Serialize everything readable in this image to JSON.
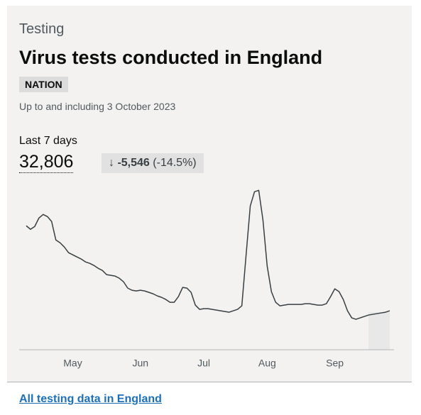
{
  "caption": "Testing",
  "title": "Virus tests conducted in England",
  "tag": "NATION",
  "subtitle": "Up to and including 3 October 2023",
  "headline": {
    "label": "Last 7 days",
    "value": "32,806",
    "change": "-5,546",
    "change_percent": "(-14.5%)"
  },
  "link": "All testing data in England",
  "chart_data": {
    "type": "line",
    "color": "#383f43",
    "ylim": [
      0,
      21000
    ],
    "categories": [
      null,
      null,
      null,
      null,
      null,
      null,
      null,
      null,
      null,
      null,
      null,
      "May",
      null,
      null,
      null,
      null,
      null,
      null,
      null,
      null,
      null,
      null,
      null,
      null,
      null,
      null,
      null,
      "Jun",
      null,
      null,
      null,
      null,
      null,
      null,
      null,
      null,
      null,
      null,
      null,
      null,
      null,
      null,
      "Jul",
      null,
      null,
      null,
      null,
      null,
      null,
      null,
      null,
      null,
      null,
      null,
      null,
      null,
      null,
      "Aug",
      null,
      null,
      null,
      null,
      null,
      null,
      null,
      null,
      null,
      null,
      null,
      null,
      null,
      null,
      null,
      "Sep",
      null,
      null,
      null,
      null,
      null,
      null,
      null,
      null,
      null,
      null,
      null,
      null,
      null
    ],
    "values": [
      15750,
      15300,
      15660,
      16740,
      17190,
      16920,
      16290,
      13950,
      13590,
      13050,
      12330,
      12060,
      11790,
      11520,
      11160,
      10980,
      10710,
      10350,
      10080,
      9540,
      9450,
      9360,
      9090,
      8640,
      7830,
      7560,
      7470,
      7560,
      7470,
      7290,
      7110,
      6840,
      6660,
      6390,
      6030,
      6030,
      6750,
      7920,
      7830,
      7290,
      5670,
      5130,
      5220,
      5220,
      5130,
      5040,
      4950,
      4860,
      4770,
      4950,
      5130,
      5580,
      11970,
      18270,
      20070,
      20250,
      16470,
      10620,
      7380,
      6030,
      5580,
      5670,
      5760,
      5760,
      5760,
      5760,
      5850,
      5850,
      5760,
      5670,
      5670,
      5850,
      6750,
      7740,
      7380,
      6390,
      4950,
      4050,
      3870,
      4050,
      4230,
      4410,
      4500,
      4590,
      4680,
      4770,
      4950
    ]
  }
}
